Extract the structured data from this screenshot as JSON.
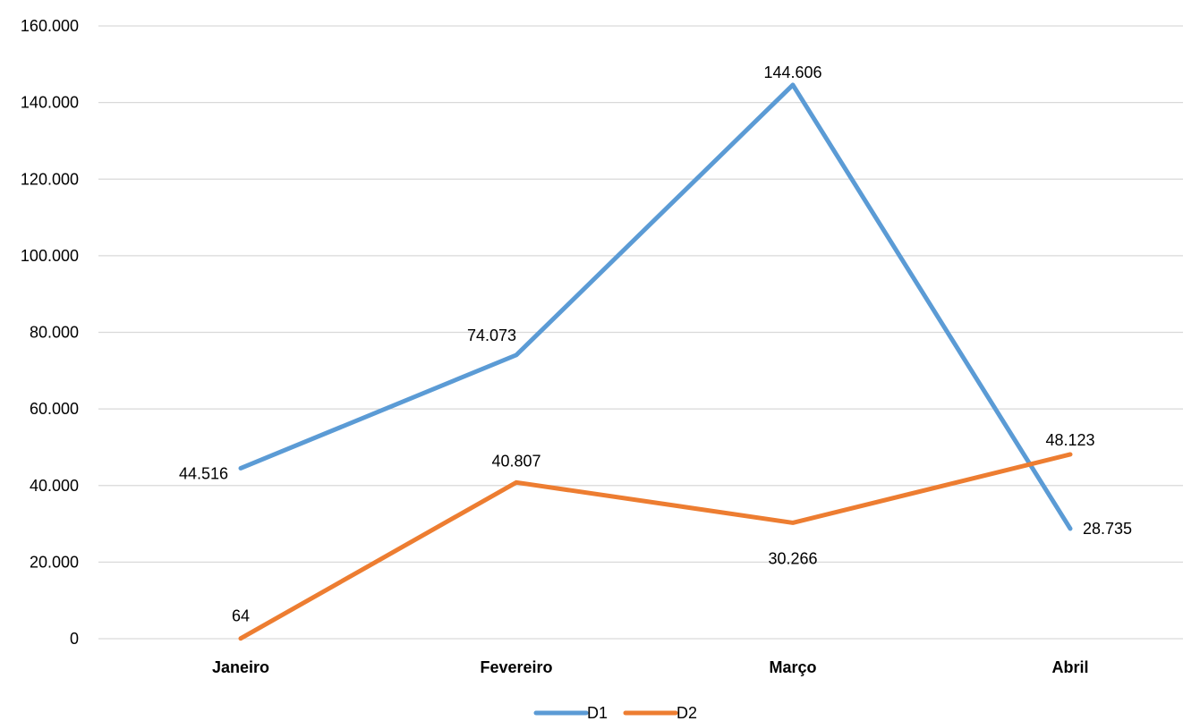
{
  "chart_data": {
    "type": "line",
    "title": "",
    "xlabel": "",
    "ylabel": "",
    "categories": [
      "Janeiro",
      "Fevereiro",
      "Março",
      "Abril"
    ],
    "y_ticks": [
      "0",
      "20.000",
      "40.000",
      "60.000",
      "80.000",
      "100.000",
      "120.000",
      "140.000",
      "160.000"
    ],
    "ylim": [
      0,
      160000
    ],
    "grid": true,
    "legend_position": "bottom",
    "series": [
      {
        "name": "D1",
        "color": "#5b9bd5",
        "values": [
          44516,
          74073,
          144606,
          28735
        ],
        "labels": [
          "44.516",
          "74.073",
          "144.606",
          "28.735"
        ]
      },
      {
        "name": "D2",
        "color": "#ed7d31",
        "values": [
          64,
          40807,
          30266,
          48123
        ],
        "labels": [
          "64",
          "40.807",
          "30.266",
          "48.123"
        ]
      }
    ]
  }
}
